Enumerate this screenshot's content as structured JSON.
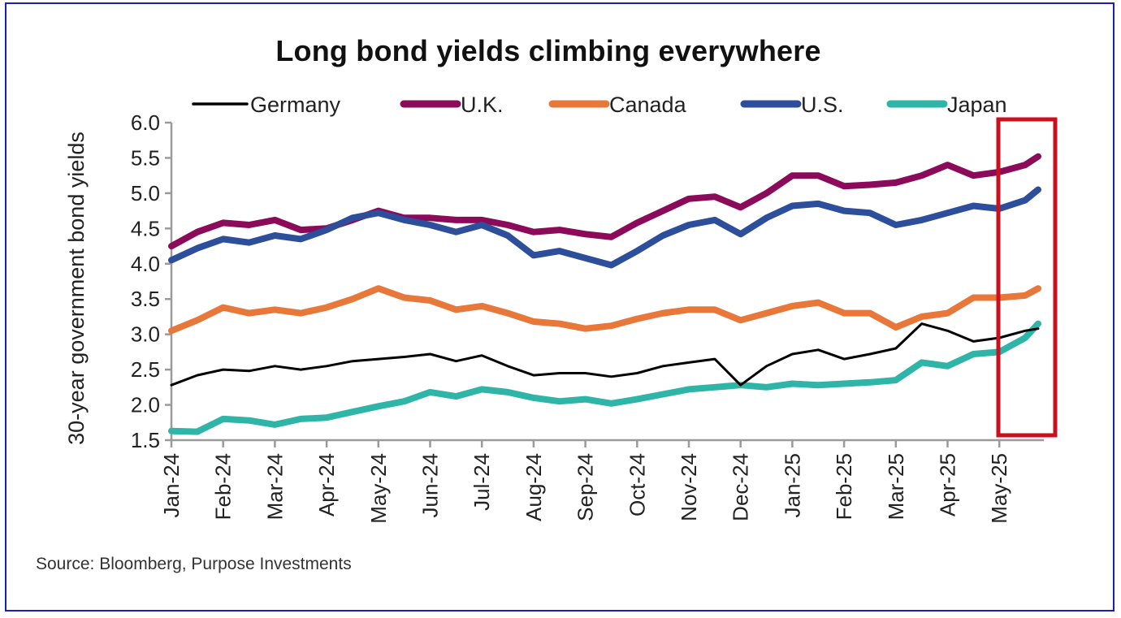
{
  "source": "Source: Bloomberg, Purpose Investments",
  "highlight": {
    "label": "Highlighted period",
    "from": "May-25",
    "to": "end of data"
  },
  "chart_data": {
    "type": "line",
    "title": "Long bond yields climbing everywhere",
    "xlabel": "",
    "ylabel": "30-year government bond yields",
    "ylim": [
      1.5,
      6.0
    ],
    "yticks": [
      "6.0",
      "5.5",
      "5.0",
      "4.5",
      "4.0",
      "3.5",
      "3.0",
      "2.5",
      "2.0",
      "1.5"
    ],
    "ytick_values": [
      6.0,
      5.5,
      5.0,
      4.5,
      4.0,
      3.5,
      3.0,
      2.5,
      2.0,
      1.5
    ],
    "xticks": [
      "Jan-24",
      "Feb-24",
      "Mar-24",
      "Apr-24",
      "May-24",
      "Jun-24",
      "Jul-24",
      "Aug-24",
      "Sep-24",
      "Oct-24",
      "Nov-24",
      "Dec-24",
      "Jan-25",
      "Feb-25",
      "Mar-25",
      "Apr-25",
      "May-25"
    ],
    "x_unit": "months since Jan-24",
    "xlim": [
      0,
      16.8
    ],
    "grid": false,
    "legend_position": "top",
    "x": [
      0,
      0.5,
      1,
      1.5,
      2,
      2.5,
      3,
      3.5,
      4,
      4.5,
      5,
      5.5,
      6,
      6.5,
      7,
      7.5,
      8,
      8.5,
      9,
      9.5,
      10,
      10.5,
      11,
      11.5,
      12,
      12.5,
      13,
      13.5,
      14,
      14.5,
      15,
      15.5,
      16,
      16.5,
      16.75
    ],
    "series": [
      {
        "name": "Germany",
        "color": "#000000",
        "width": 3,
        "values": [
          2.28,
          2.42,
          2.5,
          2.48,
          2.55,
          2.5,
          2.55,
          2.62,
          2.65,
          2.68,
          2.72,
          2.62,
          2.7,
          2.55,
          2.42,
          2.45,
          2.45,
          2.4,
          2.45,
          2.55,
          2.6,
          2.65,
          2.28,
          2.55,
          2.72,
          2.78,
          2.65,
          2.72,
          2.8,
          3.15,
          3.05,
          2.9,
          2.95,
          3.05,
          3.08
        ]
      },
      {
        "name": "U.K.",
        "color": "#8b0a5a",
        "width": 8,
        "values": [
          4.25,
          4.45,
          4.58,
          4.55,
          4.62,
          4.48,
          4.5,
          4.62,
          4.75,
          4.65,
          4.65,
          4.62,
          4.62,
          4.55,
          4.45,
          4.48,
          4.42,
          4.38,
          4.58,
          4.75,
          4.92,
          4.95,
          4.8,
          5.0,
          5.25,
          5.25,
          5.1,
          5.12,
          5.15,
          5.25,
          5.4,
          5.25,
          5.3,
          5.4,
          5.52
        ]
      },
      {
        "name": "Canada",
        "color": "#e8773a",
        "width": 8,
        "values": [
          3.05,
          3.2,
          3.38,
          3.3,
          3.35,
          3.3,
          3.38,
          3.5,
          3.65,
          3.52,
          3.48,
          3.35,
          3.4,
          3.3,
          3.18,
          3.15,
          3.08,
          3.12,
          3.22,
          3.3,
          3.35,
          3.35,
          3.2,
          3.3,
          3.4,
          3.45,
          3.3,
          3.3,
          3.1,
          3.25,
          3.3,
          3.52,
          3.52,
          3.55,
          3.65
        ]
      },
      {
        "name": "U.S.",
        "color": "#2d4e9b",
        "width": 8,
        "values": [
          4.05,
          4.22,
          4.35,
          4.3,
          4.4,
          4.35,
          4.48,
          4.65,
          4.72,
          4.62,
          4.55,
          4.45,
          4.55,
          4.4,
          4.12,
          4.18,
          4.08,
          3.98,
          4.18,
          4.4,
          4.55,
          4.62,
          4.42,
          4.65,
          4.82,
          4.85,
          4.75,
          4.72,
          4.55,
          4.62,
          4.72,
          4.82,
          4.78,
          4.9,
          5.05
        ]
      },
      {
        "name": "Japan",
        "color": "#2fb5a8",
        "width": 8,
        "values": [
          1.63,
          1.62,
          1.8,
          1.78,
          1.72,
          1.8,
          1.82,
          1.9,
          1.98,
          2.05,
          2.18,
          2.12,
          2.22,
          2.18,
          2.1,
          2.05,
          2.08,
          2.02,
          2.08,
          2.15,
          2.22,
          2.25,
          2.28,
          2.25,
          2.3,
          2.28,
          2.3,
          2.32,
          2.35,
          2.6,
          2.55,
          2.72,
          2.75,
          2.95,
          3.15
        ]
      }
    ]
  }
}
